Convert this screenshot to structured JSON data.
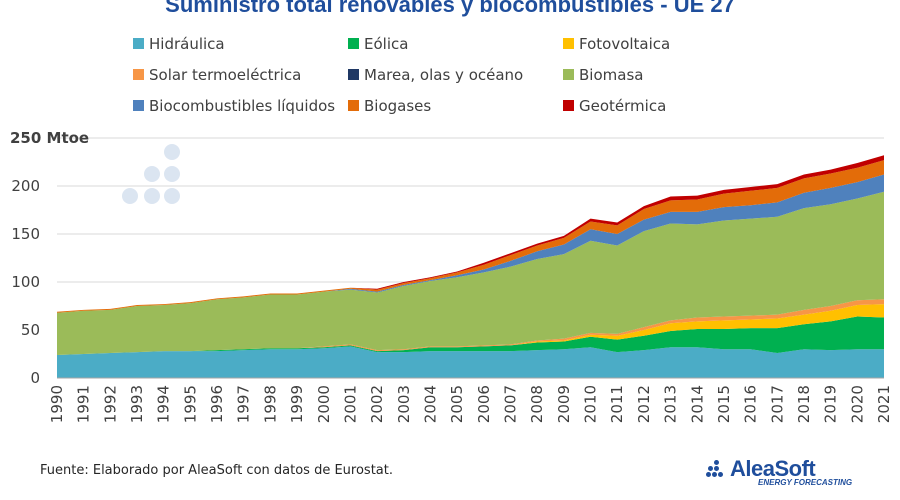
{
  "chart_data": {
    "type": "area",
    "stacked": true,
    "title": "Suministro total renovables y biocombustibles - UE 27",
    "ylabel_unit": "Mtoe",
    "ylim": [
      0,
      250
    ],
    "y_ticks": [
      "0",
      "50",
      "100",
      "150",
      "200",
      "250 Mtoe"
    ],
    "x": [
      "1990",
      "1991",
      "1992",
      "1993",
      "1994",
      "1995",
      "1996",
      "1997",
      "1998",
      "1999",
      "2000",
      "2001",
      "2002",
      "2003",
      "2004",
      "2005",
      "2006",
      "2007",
      "2008",
      "2009",
      "2010",
      "2011",
      "2012",
      "2013",
      "2014",
      "2015",
      "2016",
      "2017",
      "2018",
      "2019",
      "2020",
      "2021"
    ],
    "legend_position": "top",
    "series": [
      {
        "name": "Hidráulica",
        "color": "#4bacc6",
        "values": [
          24,
          25,
          26,
          27,
          28,
          28,
          28,
          29,
          30,
          30,
          31,
          33,
          27,
          27,
          28,
          28,
          28,
          28,
          29,
          30,
          32,
          27,
          29,
          32,
          32,
          30,
          30,
          26,
          30,
          29,
          30,
          30
        ]
      },
      {
        "name": "Eólica",
        "color": "#00b050",
        "values": [
          0,
          0,
          0,
          0,
          0,
          0,
          1,
          1,
          1,
          1,
          1,
          1,
          1,
          2,
          4,
          4,
          5,
          6,
          8,
          8,
          11,
          13,
          15,
          17,
          19,
          21,
          22,
          26,
          26,
          30,
          34,
          33
        ]
      },
      {
        "name": "Fotovoltaica",
        "color": "#ffc000",
        "values": [
          0,
          0,
          0,
          0,
          0,
          0,
          0,
          0,
          0,
          0,
          0,
          0,
          0,
          0,
          0,
          0,
          0,
          0,
          1,
          1,
          2,
          4,
          6,
          8,
          8,
          9,
          9,
          10,
          10,
          11,
          12,
          14
        ]
      },
      {
        "name": "Solar termoeléctrica",
        "color": "#f79646",
        "values": [
          0,
          0,
          0,
          0,
          0,
          0,
          0,
          0,
          0,
          0,
          1,
          1,
          1,
          1,
          1,
          1,
          1,
          1,
          1,
          2,
          2,
          2,
          3,
          3,
          4,
          4,
          4,
          4,
          5,
          5,
          5,
          5
        ]
      },
      {
        "name": "Marea, olas y océano",
        "color": "#1f3864",
        "values": [
          0,
          0,
          0,
          0,
          0,
          0,
          0,
          0,
          0,
          0,
          0,
          0,
          0,
          0,
          0,
          0,
          0,
          0,
          0,
          0,
          0,
          0,
          0,
          0,
          0,
          0,
          0,
          0,
          0,
          0,
          0,
          0
        ]
      },
      {
        "name": "Biomasa",
        "color": "#9bbb59",
        "values": [
          44,
          45,
          45,
          48,
          48,
          50,
          53,
          54,
          56,
          56,
          57,
          57,
          60,
          66,
          68,
          72,
          76,
          81,
          85,
          88,
          96,
          92,
          100,
          101,
          97,
          100,
          101,
          102,
          106,
          106,
          106,
          112
        ]
      },
      {
        "name": "Biocombustibles líquidos",
        "color": "#4f81bd",
        "values": [
          0,
          0,
          0,
          0,
          0,
          0,
          0,
          0,
          0,
          0,
          0,
          1,
          1,
          1,
          1,
          2,
          3,
          6,
          8,
          10,
          12,
          12,
          12,
          12,
          13,
          14,
          14,
          15,
          16,
          17,
          17,
          18
        ]
      },
      {
        "name": "Biogases",
        "color": "#e36c09",
        "values": [
          1,
          1,
          1,
          1,
          1,
          1,
          1,
          1,
          1,
          1,
          1,
          1,
          2,
          2,
          2,
          3,
          5,
          6,
          6,
          7,
          8,
          9,
          11,
          12,
          13,
          14,
          15,
          15,
          15,
          15,
          15,
          15
        ]
      },
      {
        "name": "Geotérmica",
        "color": "#c00000",
        "values": [
          0,
          0,
          0,
          0,
          0,
          0,
          0,
          0,
          0,
          0,
          0,
          0,
          1,
          1,
          1,
          1,
          2,
          2,
          2,
          2,
          3,
          3,
          3,
          4,
          4,
          4,
          4,
          4,
          4,
          4,
          5,
          5
        ]
      }
    ],
    "grid": "horizontal"
  },
  "footer": {
    "source": "Fuente: Elaborado por AleaSoft con datos de Eurostat."
  },
  "logo": {
    "name": "AleaSoft",
    "tagline": "ENERGY FORECASTING"
  }
}
